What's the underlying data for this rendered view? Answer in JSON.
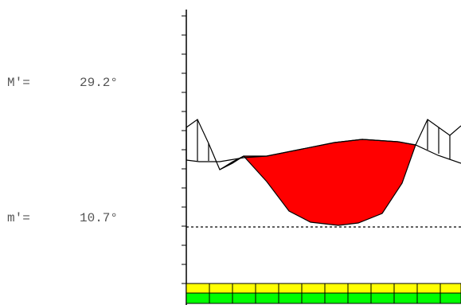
{
  "readouts": {
    "upper": {
      "label": "M′=",
      "value": "29.2°"
    },
    "lower": {
      "label": "m′=",
      "value": "10.7°"
    }
  },
  "colors": {
    "fill": "#ff0000",
    "stripe_top": "#ffff00",
    "stripe_bottom": "#00ff00",
    "line": "#000000"
  }
}
